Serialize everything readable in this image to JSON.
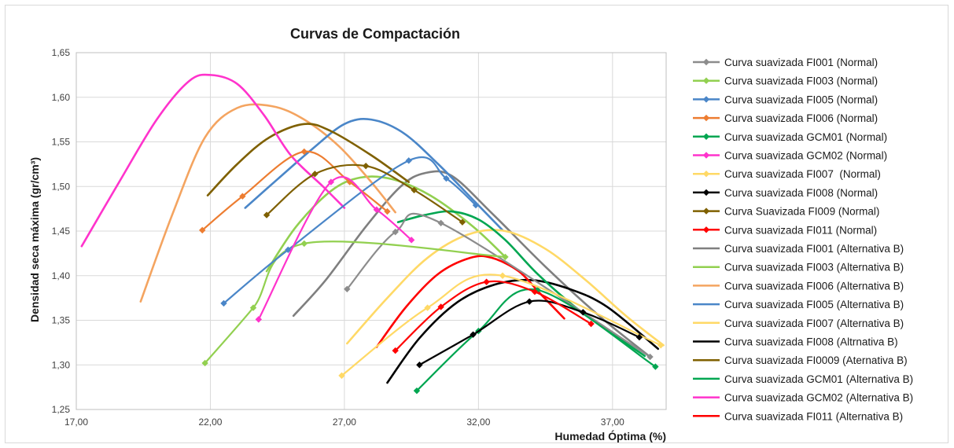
{
  "chart_data": {
    "type": "scatter",
    "title": "Curvas de Compactación",
    "xlabel": "Humedad Óptima (%)",
    "ylabel": "Densidad seca máxima (gr/cm³)",
    "xlim": [
      17,
      39
    ],
    "ylim": [
      1.25,
      1.65
    ],
    "xticks": [
      17,
      22,
      27,
      32,
      37
    ],
    "xtick_labels": [
      "17,00",
      "22,00",
      "27,00",
      "32,00",
      "37,00"
    ],
    "yticks": [
      1.25,
      1.3,
      1.35,
      1.4,
      1.45,
      1.5,
      1.55,
      1.6,
      1.65
    ],
    "ytick_labels": [
      "1,25",
      "1,30",
      "1,35",
      "1,40",
      "1,45",
      "1,50",
      "1,55",
      "1,60",
      "1,65"
    ],
    "legend_position": "right",
    "series": [
      {
        "name": "Curva suavizada FI001 (Normal)",
        "color": "#8c8c8c",
        "marker": "diamond",
        "x": [
          27.1,
          28.9,
          30.6,
          38.4
        ],
        "y": [
          1.385,
          1.449,
          1.459,
          1.309
        ]
      },
      {
        "name": "Curva suavizada FI003 (Normal)",
        "color": "#92d050",
        "marker": "diamond",
        "x": [
          21.8,
          23.6,
          25.5,
          33.0
        ],
        "y": [
          1.302,
          1.364,
          1.436,
          1.421
        ]
      },
      {
        "name": "Curva suavizada FI005 (Normal)",
        "color": "#4a86c8",
        "marker": "diamond",
        "x": [
          22.5,
          24.9,
          29.4,
          30.8,
          31.9
        ],
        "y": [
          1.369,
          1.429,
          1.529,
          1.509,
          1.479
        ]
      },
      {
        "name": "Curva suavizada FI006 (Normal)",
        "color": "#ed7d31",
        "marker": "diamond",
        "x": [
          21.7,
          23.2,
          25.5,
          27.2,
          28.6
        ],
        "y": [
          1.451,
          1.489,
          1.539,
          1.505,
          1.472
        ]
      },
      {
        "name": "Curva suavizada GCM01 (Normal)",
        "color": "#00a651",
        "marker": "diamond",
        "x": [
          29.7,
          32.0,
          34.2,
          38.6
        ],
        "y": [
          1.271,
          1.338,
          1.384,
          1.298
        ]
      },
      {
        "name": "Curva suavizada GCM02 (Normal)",
        "color": "#ff33cc",
        "marker": "diamond",
        "x": [
          23.8,
          26.5,
          28.2,
          29.5
        ],
        "y": [
          1.351,
          1.505,
          1.474,
          1.44
        ]
      },
      {
        "name": "Curva suavizada FI007  (Normal)",
        "color": "#ffd966",
        "marker": "diamond",
        "x": [
          26.9,
          30.1,
          32.9,
          38.8
        ],
        "y": [
          1.288,
          1.364,
          1.4,
          1.322
        ]
      },
      {
        "name": "Curva suavizada FI008 (Normal)",
        "color": "#000000",
        "marker": "diamond",
        "x": [
          29.8,
          31.8,
          33.9,
          35.9,
          38.0
        ],
        "y": [
          1.3,
          1.334,
          1.371,
          1.359,
          1.331
        ]
      },
      {
        "name": "Curva Suavizada FI009 (Normal)",
        "color": "#7f6000",
        "marker": "diamond",
        "x": [
          24.1,
          25.9,
          27.8,
          29.6,
          31.4
        ],
        "y": [
          1.468,
          1.514,
          1.523,
          1.496,
          1.46
        ]
      },
      {
        "name": "Curva suavizada FI011 (Normal)",
        "color": "#ff0000",
        "marker": "diamond",
        "x": [
          28.9,
          30.6,
          32.3,
          34.1,
          36.2
        ],
        "y": [
          1.316,
          1.365,
          1.393,
          1.382,
          1.346
        ]
      },
      {
        "name": "Curva suavizada FI001 (Alternativa B)",
        "color": "#7f7f7f",
        "marker": "none",
        "x": [
          25.1,
          26.3,
          27.8,
          29.1,
          30.0,
          31.0,
          32.5,
          34.5,
          36.5,
          38.4
        ],
        "y": [
          1.355,
          1.395,
          1.455,
          1.5,
          1.515,
          1.512,
          1.47,
          1.41,
          1.355,
          1.309
        ]
      },
      {
        "name": "Curva suavizada FI003 (Alternativa B)",
        "color": "#92d050",
        "marker": "none",
        "x": [
          24.1,
          25.2,
          26.5,
          27.6,
          28.8,
          30.2,
          31.8,
          33.0
        ],
        "y": [
          1.405,
          1.455,
          1.495,
          1.51,
          1.508,
          1.49,
          1.455,
          1.421
        ]
      },
      {
        "name": "Curva suavizada FI006 (Alternativa B)",
        "color": "#f4a460",
        "marker": "none",
        "x": [
          19.4,
          20.6,
          21.8,
          23.0,
          24.3,
          25.5,
          26.8,
          28.0,
          28.9
        ],
        "y": [
          1.371,
          1.47,
          1.555,
          1.588,
          1.59,
          1.575,
          1.545,
          1.505,
          1.471
        ]
      },
      {
        "name": "Curva suavizada FI005 (Alternativa B)",
        "color": "#4a86c8",
        "marker": "none",
        "x": [
          23.3,
          24.5,
          25.8,
          27.0,
          28.0,
          29.2,
          30.5,
          31.8,
          32.9
        ],
        "y": [
          1.476,
          1.508,
          1.542,
          1.57,
          1.575,
          1.56,
          1.525,
          1.485,
          1.451
        ]
      },
      {
        "name": "Curva suavizada FI007 (Alternativa B)",
        "color": "#ffd966",
        "marker": "none",
        "x": [
          27.1,
          28.6,
          30.1,
          31.6,
          33.0,
          34.5,
          36.0,
          37.5,
          38.9
        ],
        "y": [
          1.324,
          1.375,
          1.42,
          1.446,
          1.45,
          1.43,
          1.395,
          1.355,
          1.322
        ]
      },
      {
        "name": "Curva suavizada FI008 (Altrnativa B)",
        "color": "#000000",
        "marker": "none",
        "x": [
          28.6,
          29.8,
          31.2,
          32.6,
          34.0,
          35.4,
          36.8,
          38.7
        ],
        "y": [
          1.28,
          1.33,
          1.37,
          1.39,
          1.395,
          1.385,
          1.365,
          1.318
        ]
      },
      {
        "name": "Curva suavizada FI0009 (Aternativa B)",
        "color": "#7f6000",
        "marker": "none",
        "x": [
          21.9,
          23.0,
          24.2,
          25.5,
          26.5,
          28.0,
          29.4
        ],
        "y": [
          1.49,
          1.525,
          1.555,
          1.57,
          1.562,
          1.535,
          1.505
        ]
      },
      {
        "name": "Curva suavizada GCM01 (Alternativa B)",
        "color": "#00a651",
        "marker": "none",
        "x": [
          29.0,
          30.0,
          31.0,
          32.0,
          33.0,
          34.2,
          35.6,
          37.0,
          38.2
        ],
        "y": [
          1.46,
          1.468,
          1.472,
          1.463,
          1.44,
          1.402,
          1.365,
          1.335,
          1.31
        ]
      },
      {
        "name": "Curva suavizada GCM02 (Alternativa B)",
        "color": "#ff33cc",
        "marker": "none",
        "x": [
          17.2,
          18.6,
          20.0,
          21.2,
          22.0,
          23.0,
          24.0,
          25.0,
          26.2,
          27.0
        ],
        "y": [
          1.433,
          1.505,
          1.575,
          1.618,
          1.625,
          1.615,
          1.58,
          1.535,
          1.5,
          1.476
        ]
      },
      {
        "name": "Curva suavizada FI011 (Alternativa B)",
        "color": "#ff0000",
        "marker": "none",
        "x": [
          28.2,
          29.3,
          30.5,
          31.7,
          32.5,
          33.5,
          34.3,
          35.2
        ],
        "y": [
          1.32,
          1.365,
          1.402,
          1.42,
          1.42,
          1.405,
          1.38,
          1.352
        ]
      }
    ]
  }
}
